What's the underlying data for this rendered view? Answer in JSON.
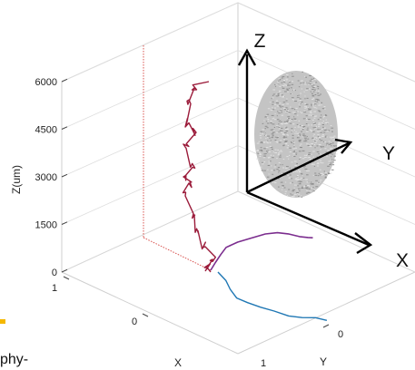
{
  "chart_data": {
    "type": "line3d",
    "zlabel": "Z(um)",
    "xlabel": "X",
    "ylabel": "Y",
    "z_ticks": [
      "0",
      "1500",
      "3000",
      "4500",
      "6000"
    ],
    "x_ticks": [
      "1",
      "0"
    ],
    "y_ticks": [
      "0",
      "1"
    ],
    "zlim": [
      0,
      6600
    ],
    "grid": true,
    "series": [
      {
        "color": "#9b1b3a",
        "z": [
          0,
          150,
          400,
          800,
          1300,
          1800,
          2400,
          2800,
          3000,
          3300,
          3900,
          4400,
          4700,
          5300,
          5800,
          6000
        ]
      },
      {
        "color": "#7b2d8e"
      },
      {
        "color": "#1f77b4"
      }
    ],
    "inset": {
      "axis_labels": [
        "Z",
        "Y",
        "X"
      ],
      "point_cloud_color": "#9a9a9a"
    },
    "fragment_text": "phy-",
    "accent_color": "#f5b800"
  }
}
